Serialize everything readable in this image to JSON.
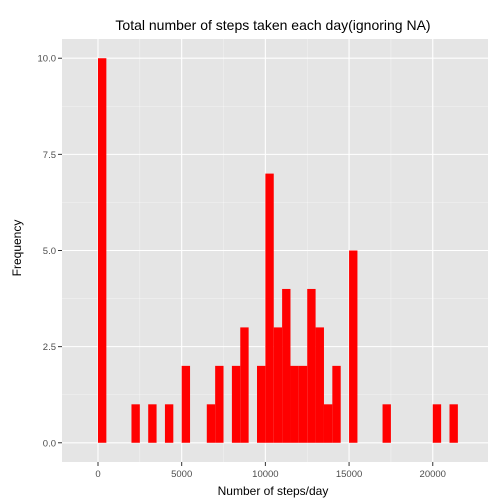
{
  "chart_data": {
    "type": "bar",
    "title": "Total number of steps taken each day(ignoring NA)",
    "xlabel": "Number of steps/day",
    "ylabel": "Frequency",
    "xlim": [
      -2150,
      23300
    ],
    "ylim": [
      -0.5,
      10.5
    ],
    "x_ticks": [
      0,
      5000,
      10000,
      15000,
      20000
    ],
    "x_tick_labels": [
      "0",
      "5000",
      "10000",
      "15000",
      "20000"
    ],
    "y_ticks": [
      0,
      2.5,
      5,
      7.5,
      10
    ],
    "y_tick_labels": [
      "0.0",
      "2.5",
      "5.0",
      "7.5",
      "10.0"
    ],
    "bin_width": 500,
    "bins": [
      {
        "x0": 0,
        "x1": 500,
        "count": 10
      },
      {
        "x0": 2000,
        "x1": 2500,
        "count": 1
      },
      {
        "x0": 3000,
        "x1": 3500,
        "count": 1
      },
      {
        "x0": 4000,
        "x1": 4500,
        "count": 1
      },
      {
        "x0": 5000,
        "x1": 5500,
        "count": 2
      },
      {
        "x0": 6500,
        "x1": 7000,
        "count": 1
      },
      {
        "x0": 7000,
        "x1": 7500,
        "count": 2
      },
      {
        "x0": 8000,
        "x1": 8500,
        "count": 2
      },
      {
        "x0": 8500,
        "x1": 9000,
        "count": 3
      },
      {
        "x0": 9500,
        "x1": 10000,
        "count": 2
      },
      {
        "x0": 10000,
        "x1": 10500,
        "count": 7
      },
      {
        "x0": 10500,
        "x1": 11000,
        "count": 3
      },
      {
        "x0": 11000,
        "x1": 11500,
        "count": 4
      },
      {
        "x0": 11500,
        "x1": 12000,
        "count": 2
      },
      {
        "x0": 12000,
        "x1": 12500,
        "count": 2
      },
      {
        "x0": 12500,
        "x1": 13000,
        "count": 4
      },
      {
        "x0": 13000,
        "x1": 13500,
        "count": 3
      },
      {
        "x0": 13500,
        "x1": 14000,
        "count": 1
      },
      {
        "x0": 14000,
        "x1": 14500,
        "count": 2
      },
      {
        "x0": 15000,
        "x1": 15500,
        "count": 5
      },
      {
        "x0": 17000,
        "x1": 17500,
        "count": 1
      },
      {
        "x0": 20000,
        "x1": 20500,
        "count": 1
      },
      {
        "x0": 21000,
        "x1": 21500,
        "count": 1
      }
    ],
    "bar_color": "#ff0000",
    "panel_color": "#e5e5e5",
    "grid": true,
    "grid_color": "#ffffff",
    "legend": "none"
  }
}
